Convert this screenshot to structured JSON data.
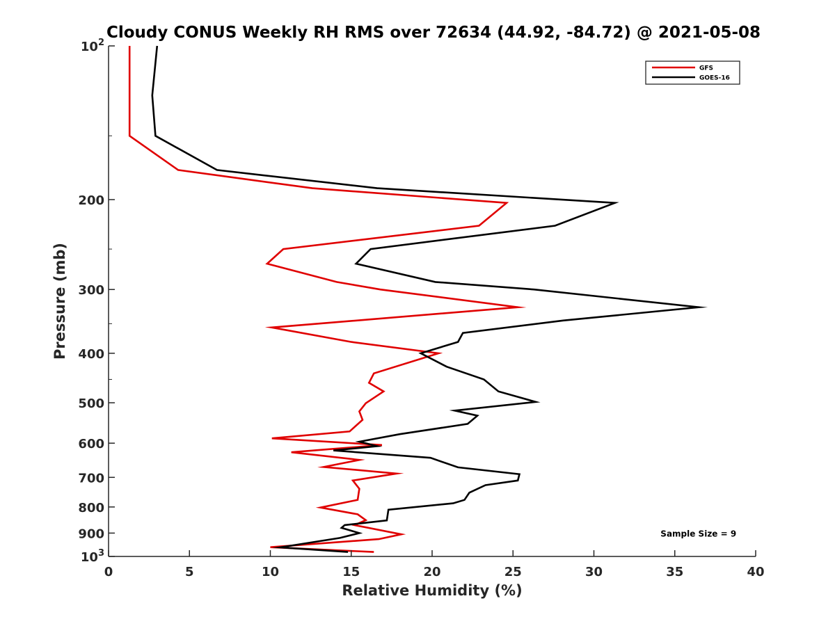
{
  "chart_data": {
    "type": "line",
    "title": "Cloudy CONUS Weekly RH RMS over 72634 (44.92, -84.72) @ 2021-05-08",
    "xlabel": "Relative Humidity (%)",
    "ylabel": "Pressure (mb)",
    "xlim": [
      0,
      40
    ],
    "ylim": [
      1000,
      100
    ],
    "y_scale": "log",
    "y_reversed": true,
    "grid": false,
    "legend_position": "top-right",
    "x_ticks": [
      0,
      5,
      10,
      15,
      20,
      25,
      30,
      35,
      40
    ],
    "x_tick_labels": [
      "0",
      "5",
      "10",
      "15",
      "20",
      "25",
      "30",
      "35",
      "40"
    ],
    "y_ticks": [
      100,
      200,
      300,
      400,
      500,
      600,
      700,
      800,
      900,
      1000
    ],
    "y_tick_labels": [
      {
        "base": "10",
        "exp": "2"
      },
      {
        "base": "200",
        "exp": ""
      },
      {
        "base": "300",
        "exp": ""
      },
      {
        "base": "400",
        "exp": ""
      },
      {
        "base": "500",
        "exp": ""
      },
      {
        "base": "600",
        "exp": ""
      },
      {
        "base": "700",
        "exp": ""
      },
      {
        "base": "800",
        "exp": ""
      },
      {
        "base": "900",
        "exp": ""
      },
      {
        "base": "10",
        "exp": "3"
      }
    ],
    "series": [
      {
        "name": "GFS",
        "color": "#e00000",
        "points": [
          [
            1.3,
            100
          ],
          [
            1.3,
            125
          ],
          [
            1.3,
            150
          ],
          [
            4.3,
            175
          ],
          [
            12.6,
            190
          ],
          [
            24.6,
            203
          ],
          [
            22.9,
            225
          ],
          [
            10.8,
            250
          ],
          [
            9.8,
            267
          ],
          [
            14.1,
            290
          ],
          [
            16.8,
            300
          ],
          [
            25.3,
            325
          ],
          [
            10.1,
            356
          ],
          [
            15.0,
            380
          ],
          [
            20.4,
            400
          ],
          [
            16.4,
            438
          ],
          [
            16.1,
            457
          ],
          [
            17.0,
            475
          ],
          [
            15.9,
            501
          ],
          [
            15.5,
            520
          ],
          [
            15.7,
            540
          ],
          [
            14.9,
            569
          ],
          [
            10.1,
            587
          ],
          [
            16.9,
            605
          ],
          [
            11.3,
            625
          ],
          [
            15.5,
            647
          ],
          [
            13.3,
            668
          ],
          [
            17.8,
            688
          ],
          [
            15.1,
            710
          ],
          [
            15.5,
            737
          ],
          [
            15.4,
            775
          ],
          [
            13.1,
            802
          ],
          [
            15.4,
            827
          ],
          [
            15.9,
            849
          ],
          [
            15.2,
            868
          ],
          [
            18.1,
            905
          ],
          [
            16.7,
            925
          ],
          [
            10.0,
            959
          ],
          [
            16.4,
            980
          ]
        ]
      },
      {
        "name": "GOES-16",
        "color": "#000000",
        "points": [
          [
            3.0,
            100
          ],
          [
            2.7,
            125
          ],
          [
            2.9,
            150
          ],
          [
            6.7,
            175
          ],
          [
            16.6,
            190
          ],
          [
            31.3,
            203
          ],
          [
            27.6,
            225
          ],
          [
            16.2,
            250
          ],
          [
            15.3,
            267
          ],
          [
            20.2,
            290
          ],
          [
            26.3,
            300
          ],
          [
            36.5,
            325
          ],
          [
            28.1,
            345
          ],
          [
            21.9,
            365
          ],
          [
            21.6,
            380
          ],
          [
            19.3,
            400
          ],
          [
            20.9,
            425
          ],
          [
            23.2,
            450
          ],
          [
            24.1,
            475
          ],
          [
            26.4,
            498
          ],
          [
            21.4,
            518
          ],
          [
            22.8,
            530
          ],
          [
            22.2,
            550
          ],
          [
            18.0,
            576
          ],
          [
            15.5,
            596
          ],
          [
            16.6,
            608
          ],
          [
            13.9,
            620
          ],
          [
            19.9,
            641
          ],
          [
            21.6,
            669
          ],
          [
            25.4,
            690
          ],
          [
            25.3,
            710
          ],
          [
            23.3,
            725
          ],
          [
            22.3,
            750
          ],
          [
            22.0,
            775
          ],
          [
            21.3,
            787
          ],
          [
            17.3,
            810
          ],
          [
            17.2,
            850
          ],
          [
            14.6,
            868
          ],
          [
            14.4,
            879
          ],
          [
            15.5,
            900
          ],
          [
            14.3,
            920
          ],
          [
            10.6,
            960
          ],
          [
            14.8,
            980
          ]
        ]
      }
    ],
    "annotations": [
      {
        "text": "Sample Size = 9",
        "x": 35,
        "y": 900
      }
    ]
  }
}
